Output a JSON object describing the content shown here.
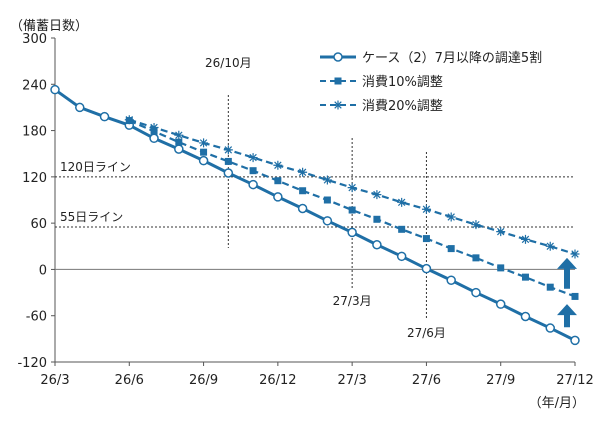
{
  "chart_data": {
    "type": "line",
    "ylabel": "（備蓄日数）",
    "xlabel": "（年/月）",
    "ylim": [
      -120,
      300
    ],
    "yticks": [
      300,
      240,
      180,
      120,
      60,
      0,
      -60,
      -120
    ],
    "xticks": [
      "26/3",
      "26/6",
      "26/9",
      "26/12",
      "27/3",
      "27/6",
      "27/9",
      "27/12"
    ],
    "grid": false,
    "legend_position": "top-right",
    "series": [
      {
        "name": "ケース（2）7月以降の調達5割",
        "color": "#1f6fa6",
        "marker": "circle",
        "style": "solid",
        "points": [
          [
            0,
            233
          ],
          [
            1,
            210
          ],
          [
            2,
            198
          ],
          [
            3,
            187
          ],
          [
            4,
            170
          ],
          [
            5,
            156
          ],
          [
            6,
            141
          ],
          [
            7,
            125
          ],
          [
            8,
            110
          ],
          [
            9,
            94
          ],
          [
            10,
            79
          ],
          [
            11,
            63
          ],
          [
            12,
            48
          ],
          [
            13,
            32
          ],
          [
            14,
            17
          ],
          [
            15,
            1
          ],
          [
            16,
            -14
          ],
          [
            17,
            -30
          ],
          [
            18,
            -45
          ],
          [
            19,
            -61
          ],
          [
            20,
            -76
          ],
          [
            21,
            -92
          ]
        ]
      },
      {
        "name": "消費10%調整",
        "color": "#1f6fa6",
        "marker": "square",
        "style": "dashed",
        "points": [
          [
            3,
            193
          ],
          [
            4,
            179
          ],
          [
            5,
            165
          ],
          [
            6,
            152
          ],
          [
            7,
            140
          ],
          [
            8,
            128
          ],
          [
            9,
            115
          ],
          [
            10,
            102
          ],
          [
            11,
            90
          ],
          [
            12,
            77
          ],
          [
            13,
            65
          ],
          [
            14,
            52
          ],
          [
            15,
            40
          ],
          [
            16,
            27
          ],
          [
            17,
            15
          ],
          [
            18,
            2
          ],
          [
            19,
            -10
          ],
          [
            20,
            -23
          ],
          [
            21,
            -35
          ]
        ]
      },
      {
        "name": "消費20%調整",
        "color": "#1f6fa6",
        "marker": "star",
        "style": "dashed",
        "points": [
          [
            3,
            194
          ],
          [
            4,
            184
          ],
          [
            5,
            174
          ],
          [
            6,
            164
          ],
          [
            7,
            155
          ],
          [
            8,
            145
          ],
          [
            9,
            135
          ],
          [
            10,
            126
          ],
          [
            11,
            116
          ],
          [
            12,
            106
          ],
          [
            13,
            97
          ],
          [
            14,
            87
          ],
          [
            15,
            78
          ],
          [
            16,
            68
          ],
          [
            17,
            58
          ],
          [
            18,
            49
          ],
          [
            19,
            39
          ],
          [
            20,
            30
          ],
          [
            21,
            20
          ]
        ]
      }
    ],
    "hlines": [
      {
        "value": 120,
        "label": "120日ライン"
      },
      {
        "value": 55,
        "label": "55日ライン"
      }
    ],
    "vlines": [
      {
        "x": 7,
        "label": "26/10月"
      },
      {
        "x": 12,
        "label": "27/3月"
      },
      {
        "x": 15,
        "label": "27/6月"
      }
    ],
    "arrows": [
      {
        "x": 21,
        "from": -25,
        "to": 15
      },
      {
        "x": 21,
        "from": -75,
        "to": -45
      }
    ]
  }
}
